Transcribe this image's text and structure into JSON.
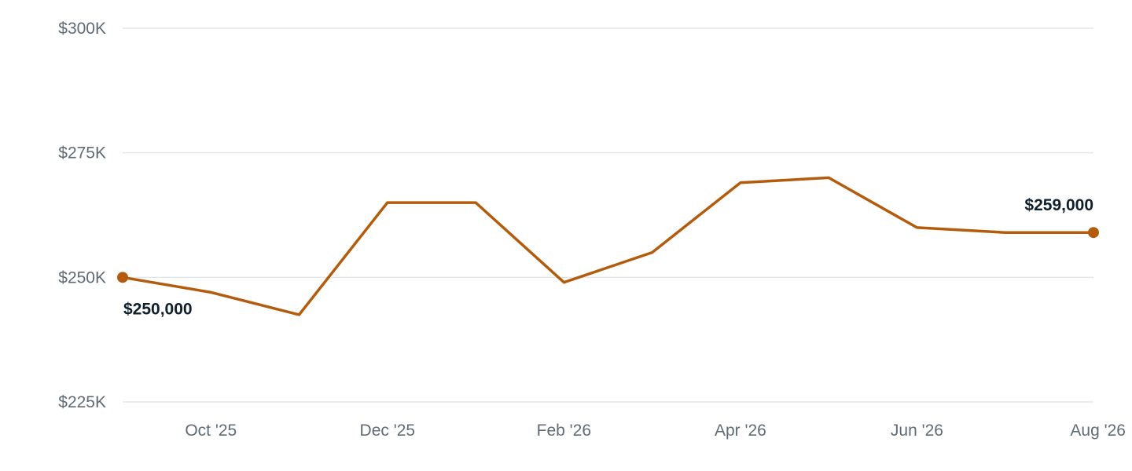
{
  "chart_data": {
    "type": "line",
    "title": "",
    "xlabel": "",
    "ylabel": "",
    "x": [
      "2025-09",
      "2025-10",
      "2025-11",
      "2025-12",
      "2026-01",
      "2026-02",
      "2026-03",
      "2026-04",
      "2026-05",
      "2026-06",
      "2026-07",
      "2026-08"
    ],
    "series": [
      {
        "values": [
          250000,
          247000,
          242500,
          265000,
          265000,
          249000,
          255000,
          269000,
          270000,
          260000,
          259000,
          259000
        ]
      }
    ],
    "ylim": [
      225000,
      300000
    ],
    "y_ticks": [
      {
        "value": 300000,
        "label": "$300K"
      },
      {
        "value": 275000,
        "label": "$275K"
      },
      {
        "value": 250000,
        "label": "$250K"
      },
      {
        "value": 225000,
        "label": "$225K"
      }
    ],
    "x_ticks": [
      {
        "index": 1,
        "label": "Oct '25"
      },
      {
        "index": 3,
        "label": "Dec '25"
      },
      {
        "index": 5,
        "label": "Feb '26"
      },
      {
        "index": 7,
        "label": "Apr '26"
      },
      {
        "index": 9,
        "label": "Jun '26"
      },
      {
        "index": 11,
        "label": "Aug '26"
      }
    ],
    "data_labels": [
      {
        "index": 0,
        "text": "$250,000"
      },
      {
        "index": 11,
        "text": "$259,000"
      }
    ],
    "grid": true,
    "legend": "none",
    "line_color": "#b35c0d"
  }
}
